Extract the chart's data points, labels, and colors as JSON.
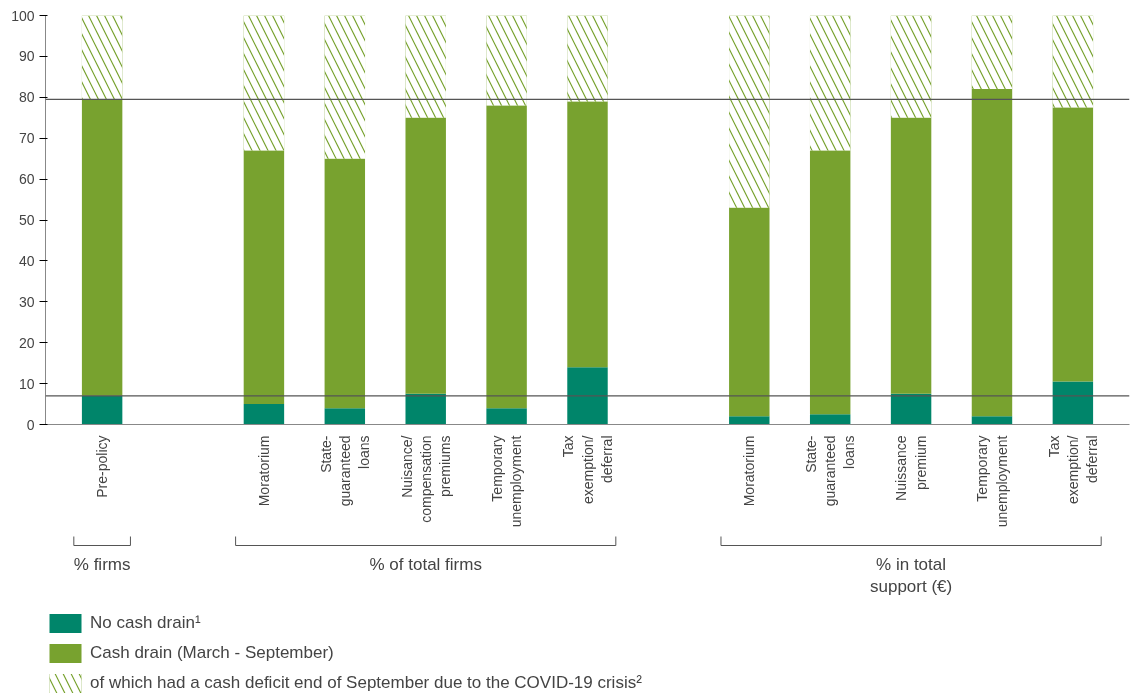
{
  "chart_data": {
    "type": "bar",
    "stacked": true,
    "categories": [
      "Pre-policy",
      null,
      "Moratorium",
      "State-\nguaranteed\nloans",
      "Nuisance/\ncompensation\npremiums",
      "Temporary\nunemployment",
      "Tax\nexemption/\ndeferral",
      null,
      "Moratorium",
      "State-\nguaranteed\nloans",
      "Nuissance\npremium",
      "Temporary\nunemployment",
      "Tax\nexemption/\ndeferral"
    ],
    "series": [
      {
        "name": "No cash drain¹",
        "color": "#00856a",
        "values": [
          7,
          null,
          5,
          4,
          7.5,
          4,
          14,
          null,
          2,
          2.5,
          7.5,
          2,
          10.5
        ]
      },
      {
        "name": "Cash drain (March - September)",
        "color": "#78a22f",
        "values": [
          72.5,
          null,
          62,
          61,
          67.5,
          74,
          65,
          null,
          51,
          64.5,
          67.5,
          80,
          67
        ]
      },
      {
        "name": "of which had a cash deficit end of September due to the COVID-19 crisis²",
        "color": "#78a22f",
        "values": [
          20.5,
          null,
          33,
          35,
          25,
          22,
          21,
          null,
          47,
          33,
          25,
          18,
          22.5
        ]
      }
    ],
    "ylim": [
      0,
      100
    ],
    "yticks": [
      0,
      10,
      20,
      30,
      40,
      50,
      60,
      70,
      80,
      90,
      100
    ],
    "grid": false,
    "legend": "bottom left",
    "ref_lines": [
      {
        "axis": "y",
        "value": 79.5,
        "color": "#555555"
      },
      {
        "axis": "y",
        "value": 7,
        "color": "#555555"
      }
    ],
    "annotations": [
      "% firms",
      "% of total firms",
      "% in total\nsupport (€)"
    ]
  }
}
